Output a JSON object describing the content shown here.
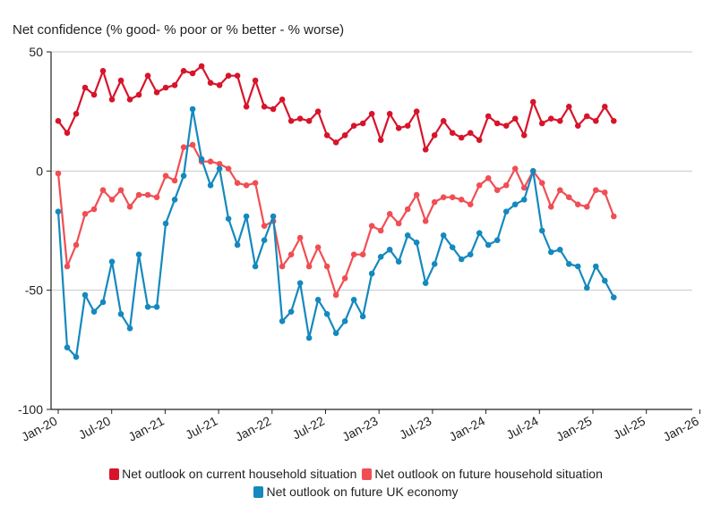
{
  "chart_data": {
    "type": "line",
    "title": "",
    "ylabel": "Net confidence (% good- % poor or % better - % worse)",
    "xlabel": "",
    "ylim": [
      -100,
      50
    ],
    "yticks": [
      50,
      0,
      -50,
      -100
    ],
    "xticks": [
      "Jan-20",
      "Jul-20",
      "Jan-21",
      "Jul-21",
      "Jan-22",
      "Jul-22",
      "Jan-23",
      "Jul-23",
      "Jan-24",
      "Jul-24",
      "Jan-25",
      "Jul-25",
      "Jan-26"
    ],
    "x_start": "Jan-20",
    "legend_position": "bottom",
    "grid": "horizontal",
    "series": [
      {
        "name": "Net outlook on current household situation",
        "color": "#d7142b",
        "values": [
          21,
          16,
          24,
          35,
          32,
          42,
          30,
          38,
          30,
          32,
          40,
          33,
          35,
          36,
          42,
          41,
          44,
          37,
          36,
          40,
          40,
          27,
          38,
          27,
          26,
          30,
          21,
          22,
          21,
          25,
          15,
          12,
          15,
          19,
          20,
          24,
          13,
          24,
          18,
          19,
          25,
          9,
          15,
          21,
          16,
          14,
          16,
          13,
          23,
          20,
          19,
          22,
          15,
          29,
          20,
          22,
          21,
          27,
          19,
          23,
          21,
          27,
          21
        ]
      },
      {
        "name": "Net outlook on future household situation",
        "color": "#f04e54",
        "values": [
          -1,
          -40,
          -31,
          -18,
          -16,
          -8,
          -12,
          -8,
          -15,
          -10,
          -10,
          -11,
          -2,
          -4,
          10,
          11,
          4,
          4,
          3,
          1,
          -5,
          -6,
          -5,
          -23,
          -21,
          -40,
          -35,
          -28,
          -40,
          -32,
          -40,
          -52,
          -45,
          -35,
          -35,
          -23,
          -25,
          -18,
          -22,
          -16,
          -10,
          -21,
          -13,
          -11,
          -11,
          -12,
          -14,
          -6,
          -3,
          -8,
          -6,
          1,
          -7,
          0,
          -5,
          -15,
          -8,
          -11,
          -14,
          -15,
          -8,
          -9,
          -19
        ]
      },
      {
        "name": "Net outlook on future UK economy",
        "color": "#1489be",
        "values": [
          -17,
          -74,
          -78,
          -52,
          -59,
          -55,
          -38,
          -60,
          -66,
          -35,
          -57,
          -57,
          -22,
          -12,
          -2,
          26,
          5,
          -6,
          1,
          -20,
          -31,
          -19,
          -40,
          -29,
          -19,
          -63,
          -59,
          -47,
          -70,
          -54,
          -60,
          -68,
          -63,
          -54,
          -61,
          -43,
          -36,
          -33,
          -38,
          -27,
          -30,
          -47,
          -39,
          -27,
          -32,
          -37,
          -35,
          -26,
          -31,
          -29,
          -17,
          -14,
          -12,
          0,
          -25,
          -34,
          -33,
          -39,
          -40,
          -49,
          -40,
          -46,
          -53
        ]
      }
    ]
  }
}
